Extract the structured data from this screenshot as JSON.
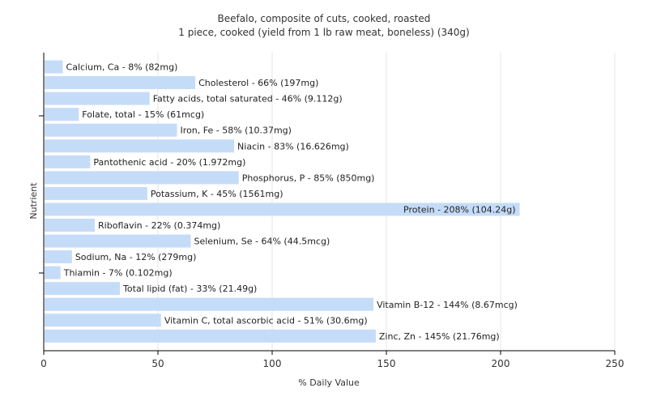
{
  "chart_data": {
    "type": "bar",
    "orientation": "horizontal",
    "title": "Beefalo, composite of cuts, cooked, roasted",
    "subtitle": "1 piece, cooked (yield from 1 lb raw meat, boneless) (340g)",
    "xlabel": "% Daily Value",
    "ylabel": "Nutrient",
    "xlim": [
      0,
      250
    ],
    "xticks": [
      0,
      50,
      100,
      150,
      200,
      250
    ],
    "grid": true,
    "bar_color": "#c5dcf8",
    "categories": [
      "Calcium, Ca",
      "Cholesterol",
      "Fatty acids, total saturated",
      "Folate, total",
      "Iron, Fe",
      "Niacin",
      "Pantothenic acid",
      "Phosphorus, P",
      "Potassium, K",
      "Protein",
      "Riboflavin",
      "Selenium, Se",
      "Sodium, Na",
      "Thiamin",
      "Total lipid (fat)",
      "Vitamin B-12",
      "Vitamin C, total ascorbic acid",
      "Zinc, Zn"
    ],
    "values": [
      8,
      66,
      46,
      15,
      58,
      83,
      20,
      85,
      45,
      208,
      22,
      64,
      12,
      7,
      33,
      144,
      51,
      145
    ],
    "labels": [
      "Calcium, Ca - 8% (82mg)",
      "Cholesterol - 66% (197mg)",
      "Fatty acids, total saturated - 46% (9.112g)",
      "Folate, total - 15% (61mcg)",
      "Iron, Fe - 58% (10.37mg)",
      "Niacin - 83% (16.626mg)",
      "Pantothenic acid - 20% (1.972mg)",
      "Phosphorus, P - 85% (850mg)",
      "Potassium, K - 45% (1561mg)",
      "Protein - 208% (104.24g)",
      "Riboflavin - 22% (0.374mg)",
      "Selenium, Se - 64% (44.5mcg)",
      "Sodium, Na - 12% (279mg)",
      "Thiamin - 7% (0.102mg)",
      "Total lipid (fat) - 33% (21.49g)",
      "Vitamin B-12 - 144% (8.67mcg)",
      "Vitamin C, total ascorbic acid - 51% (30.6mg)",
      "Zinc, Zn - 145% (21.76mg)"
    ]
  }
}
